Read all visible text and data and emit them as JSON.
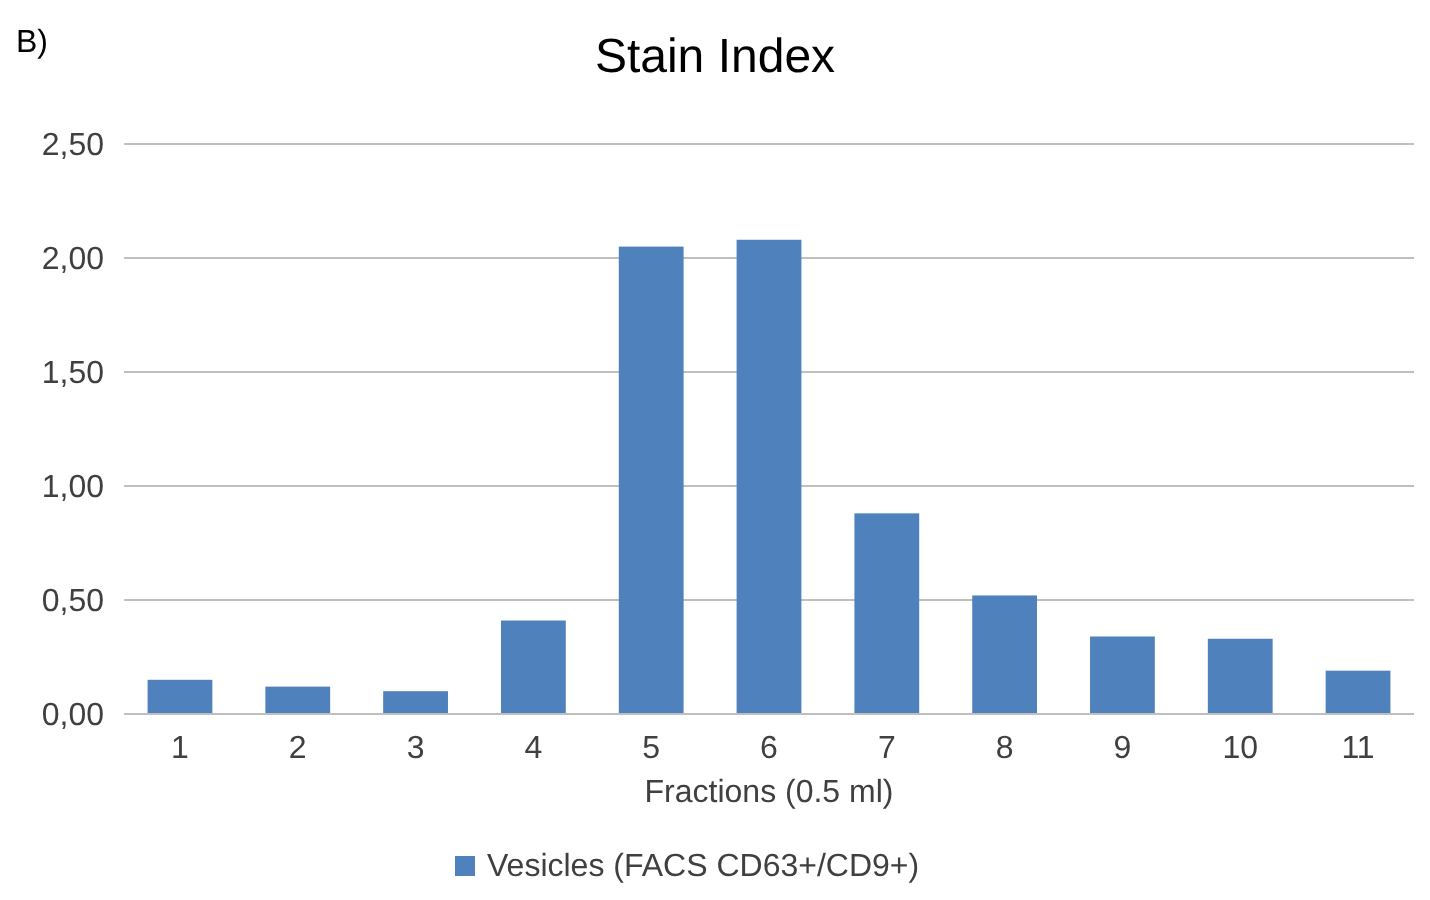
{
  "chart_data": {
    "type": "bar",
    "title": "Stain Index",
    "xlabel": "Fractions (0.5 ml)",
    "annotations": [
      "B)"
    ],
    "categories": [
      "1",
      "2",
      "3",
      "4",
      "5",
      "6",
      "7",
      "8",
      "9",
      "10",
      "11"
    ],
    "series": [
      {
        "name": "Vesicles (FACS CD63+/CD9+)",
        "color": "#4f81bd",
        "values": [
          0.15,
          0.12,
          0.1,
          0.41,
          2.05,
          2.08,
          0.88,
          0.52,
          0.34,
          0.33,
          0.19
        ]
      }
    ],
    "ylim": [
      0,
      2.5
    ],
    "yticks": [
      {
        "value": 0,
        "label": "0,00"
      },
      {
        "value": 0.5,
        "label": "0,50"
      },
      {
        "value": 1,
        "label": "1,00"
      },
      {
        "value": 1.5,
        "label": "1,50"
      },
      {
        "value": 2,
        "label": "2,00"
      },
      {
        "value": 2.5,
        "label": "2,50"
      }
    ],
    "grid": "y",
    "legend": "bottom"
  }
}
